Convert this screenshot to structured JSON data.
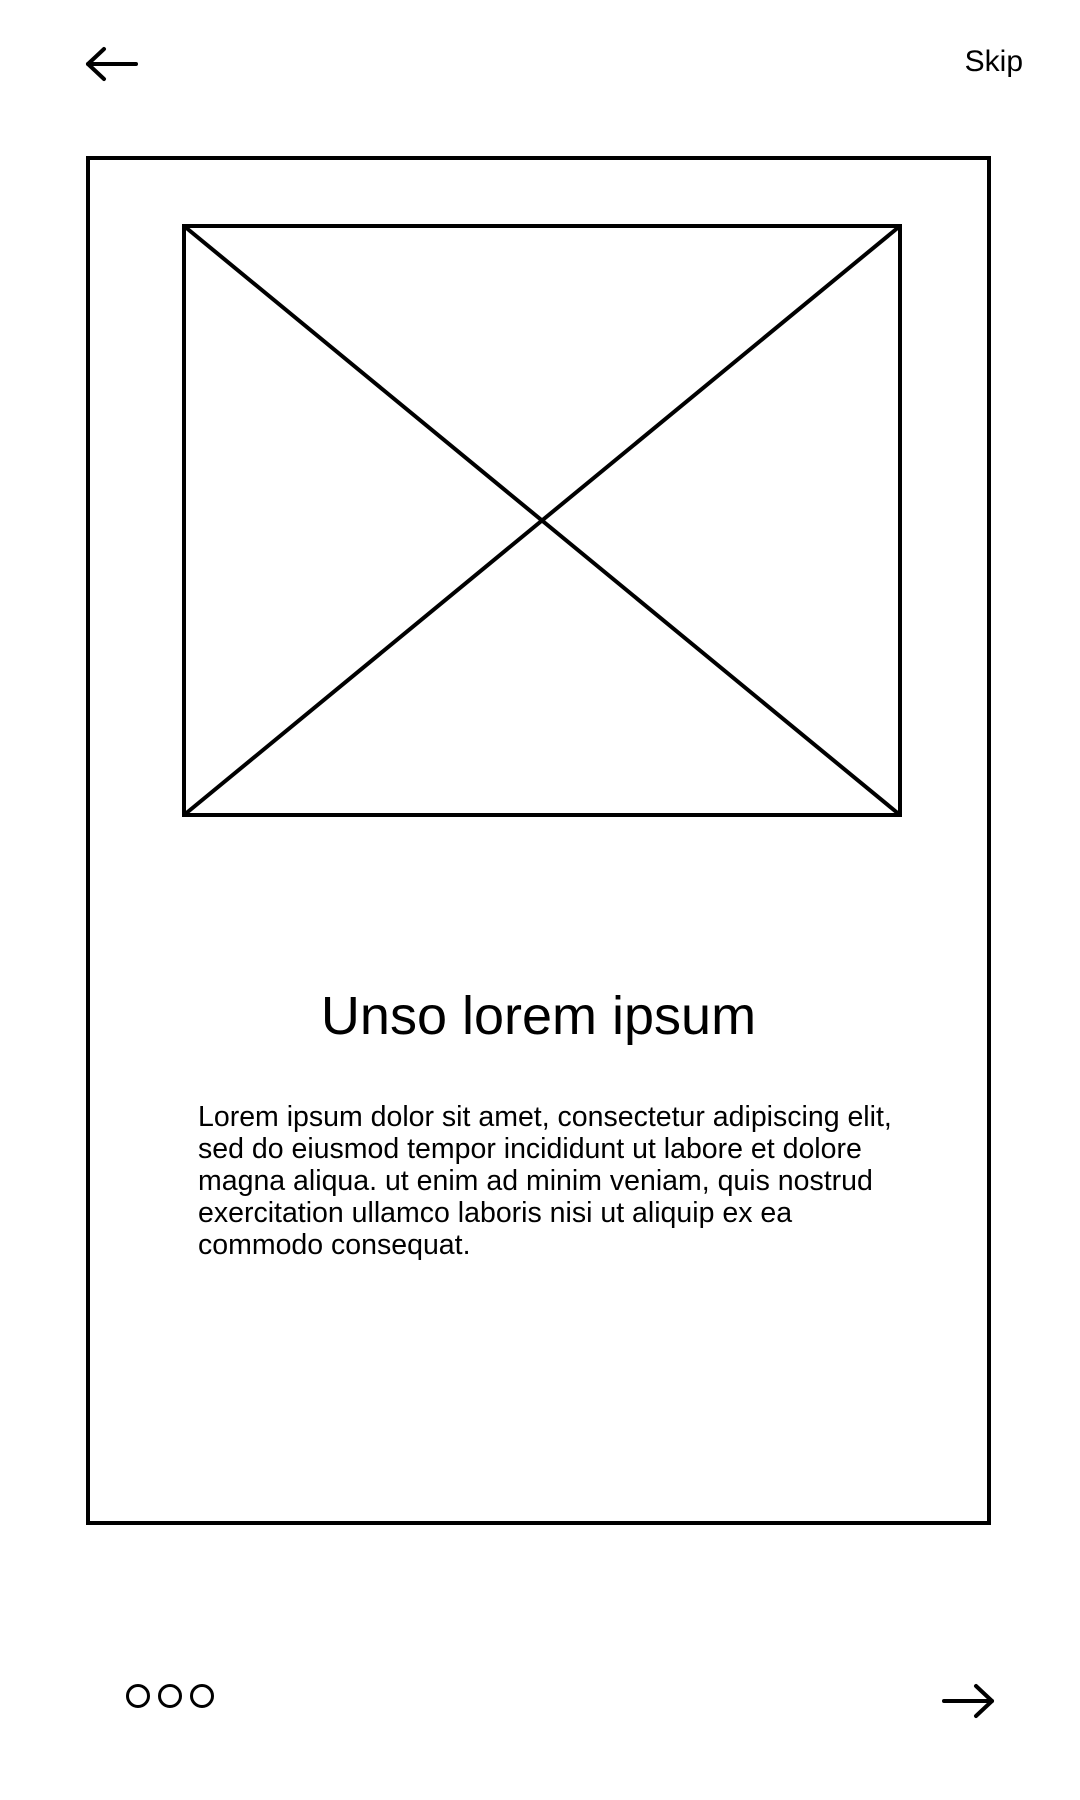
{
  "header": {
    "back_icon": "arrow-left-icon",
    "skip_label": "Skip"
  },
  "card": {
    "image_icon": "image-placeholder-icon",
    "title": "Unso lorem ipsum",
    "body": "Lorem ipsum dolor sit amet, consectetur adipiscing elit, sed do eiusmod tempor incididunt ut labore et dolore magna aliqua. ut enim ad minim veniam, quis nostrud exercitation ullamco laboris nisi ut aliquip ex ea commodo consequat."
  },
  "footer": {
    "page_count": 3,
    "next_icon": "arrow-right-icon"
  }
}
